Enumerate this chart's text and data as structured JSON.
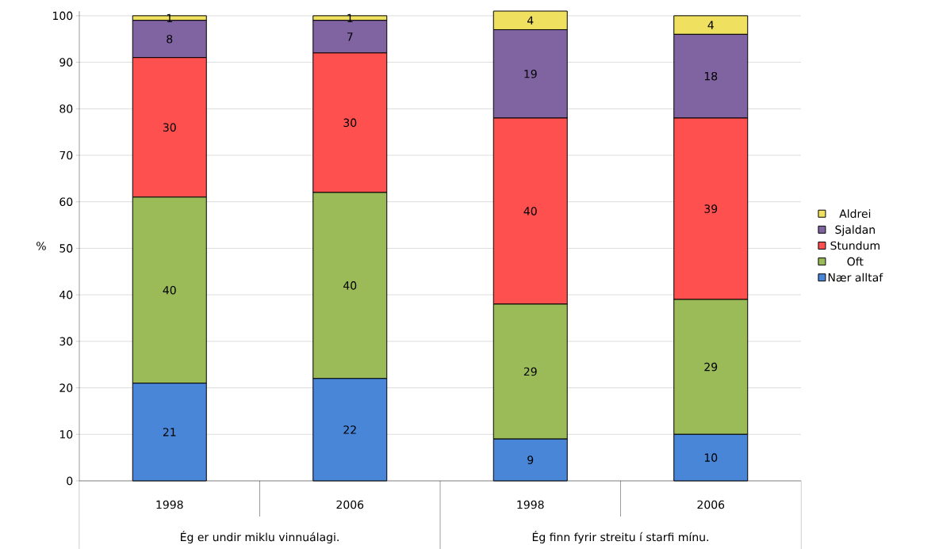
{
  "chart_data": {
    "type": "bar",
    "stacked": true,
    "ylabel": "%",
    "categories": [
      "1998",
      "2006",
      "1998",
      "2006"
    ],
    "annotations": [
      "Ég er undir miklu vinnuálagi.",
      "Ég finn fyrir streitu í starfi mínu."
    ],
    "series": [
      {
        "name": "Nær alltaf",
        "color": "#4a86d8",
        "values": [
          21,
          22,
          9,
          10
        ]
      },
      {
        "name": "Oft",
        "color": "#9bbb59",
        "values": [
          40,
          40,
          29,
          29
        ]
      },
      {
        "name": "Stundum",
        "color": "#ff5050",
        "values": [
          30,
          30,
          40,
          39
        ]
      },
      {
        "name": "Sjaldan",
        "color": "#8064a2",
        "values": [
          8,
          7,
          19,
          18
        ]
      },
      {
        "name": "Aldrei",
        "color": "#f0e060",
        "values": [
          1,
          1,
          4,
          4
        ]
      }
    ],
    "ylim": [
      0,
      101
    ],
    "yticks": [
      0,
      10,
      20,
      30,
      40,
      50,
      60,
      70,
      80,
      90,
      100
    ],
    "grid": "y",
    "legend": "right",
    "data_labels": true
  }
}
